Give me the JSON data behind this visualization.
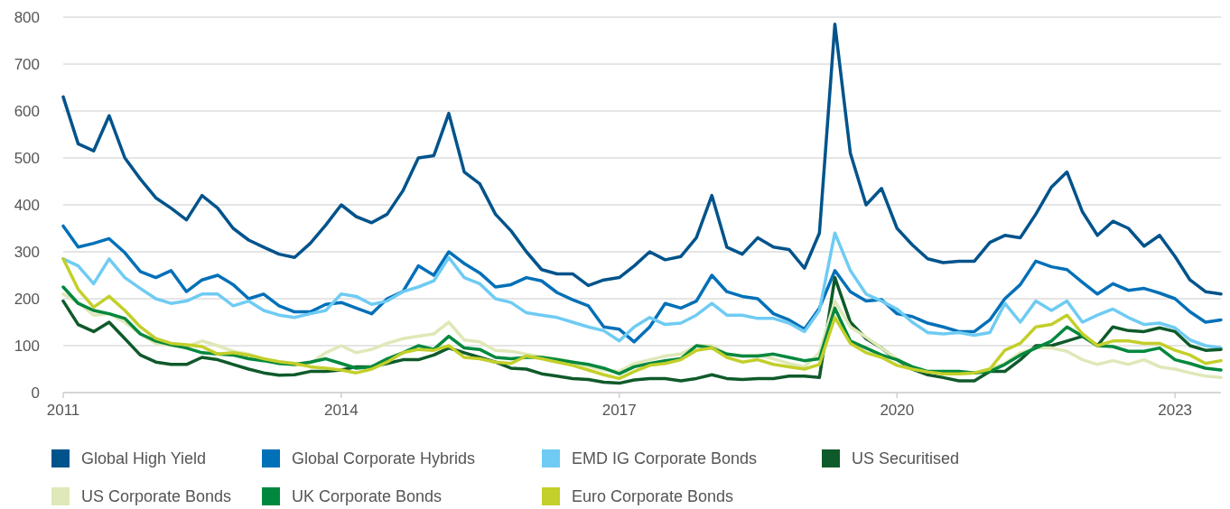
{
  "chart_data": {
    "type": "line",
    "x": [
      "2011-01",
      "2011-03",
      "2011-05",
      "2011-07",
      "2011-09",
      "2011-11",
      "2012-01",
      "2012-03",
      "2012-05",
      "2012-07",
      "2012-09",
      "2012-11",
      "2013-01",
      "2013-03",
      "2013-05",
      "2013-07",
      "2013-09",
      "2013-11",
      "2014-01",
      "2014-03",
      "2014-05",
      "2014-07",
      "2014-09",
      "2014-11",
      "2015-01",
      "2015-03",
      "2015-05",
      "2015-07",
      "2015-09",
      "2015-11",
      "2016-01",
      "2016-03",
      "2016-05",
      "2016-07",
      "2016-09",
      "2016-11",
      "2017-01",
      "2017-03",
      "2017-05",
      "2017-07",
      "2017-09",
      "2017-11",
      "2018-01",
      "2018-03",
      "2018-05",
      "2018-07",
      "2018-09",
      "2018-11",
      "2019-01",
      "2019-03",
      "2019-05",
      "2019-07",
      "2019-09",
      "2019-11",
      "2020-01",
      "2020-03",
      "2020-05",
      "2020-07",
      "2020-09",
      "2020-11",
      "2021-01",
      "2021-03",
      "2021-05",
      "2021-07",
      "2021-09",
      "2021-11",
      "2022-01",
      "2022-03",
      "2022-05",
      "2022-07",
      "2022-09",
      "2022-11",
      "2023-01",
      "2023-03",
      "2023-05",
      "2023-07"
    ],
    "series": [
      {
        "name": "Global High Yield",
        "color": "#00538b",
        "values": [
          630,
          530,
          515,
          590,
          500,
          455,
          415,
          393,
          368,
          420,
          393,
          350,
          325,
          310,
          295,
          288,
          318,
          357,
          400,
          375,
          362,
          380,
          430,
          500,
          505,
          595,
          470,
          445,
          380,
          345,
          300,
          262,
          253,
          253,
          228,
          240,
          245,
          270,
          300,
          283,
          290,
          330,
          420,
          310,
          295,
          330,
          310,
          305,
          265,
          340,
          785,
          510,
          400,
          435,
          350,
          315,
          285,
          277,
          280,
          280,
          320,
          335,
          330,
          380,
          438,
          470,
          385,
          335,
          365,
          350,
          312,
          335,
          290,
          240,
          215,
          210
        ]
      },
      {
        "name": "Global Corporate Hybrids",
        "color": "#0070b8",
        "values": [
          355,
          310,
          318,
          328,
          298,
          258,
          245,
          260,
          215,
          240,
          250,
          230,
          200,
          210,
          185,
          172,
          172,
          188,
          192,
          180,
          168,
          200,
          215,
          270,
          250,
          300,
          275,
          255,
          225,
          230,
          245,
          238,
          213,
          198,
          185,
          140,
          135,
          108,
          140,
          190,
          180,
          195,
          250,
          215,
          205,
          200,
          168,
          155,
          135,
          180,
          260,
          215,
          195,
          198,
          168,
          162,
          148,
          140,
          130,
          130,
          155,
          200,
          230,
          280,
          268,
          262,
          235,
          210,
          232,
          218,
          222,
          212,
          200,
          172,
          150,
          155
        ]
      },
      {
        "name": "EMD IG Corporate Bonds",
        "color": "#6fcbf3",
        "values": [
          285,
          270,
          232,
          285,
          245,
          222,
          200,
          190,
          195,
          210,
          210,
          185,
          195,
          175,
          165,
          160,
          168,
          175,
          210,
          205,
          188,
          195,
          215,
          225,
          238,
          288,
          245,
          232,
          200,
          192,
          170,
          165,
          160,
          150,
          140,
          132,
          110,
          140,
          160,
          145,
          148,
          165,
          190,
          165,
          165,
          158,
          158,
          148,
          130,
          175,
          340,
          260,
          210,
          195,
          178,
          150,
          128,
          125,
          128,
          122,
          128,
          190,
          150,
          195,
          175,
          195,
          150,
          165,
          178,
          160,
          145,
          148,
          138,
          112,
          100,
          95
        ]
      },
      {
        "name": "US Securitised",
        "color": "#0f5a2a",
        "values": [
          195,
          145,
          130,
          150,
          115,
          80,
          65,
          60,
          60,
          75,
          70,
          60,
          50,
          42,
          37,
          38,
          45,
          45,
          48,
          55,
          55,
          62,
          70,
          70,
          80,
          95,
          85,
          75,
          65,
          52,
          50,
          40,
          35,
          30,
          28,
          22,
          20,
          27,
          30,
          30,
          25,
          30,
          38,
          30,
          28,
          30,
          30,
          35,
          35,
          32,
          245,
          150,
          115,
          95,
          70,
          50,
          38,
          32,
          25,
          25,
          45,
          45,
          70,
          100,
          100,
          110,
          120,
          100,
          140,
          132,
          130,
          138,
          130,
          100,
          90,
          92
        ]
      },
      {
        "name": "US Corporate Bonds",
        "color": "#dfe8b8",
        "values": [
          210,
          192,
          165,
          168,
          150,
          125,
          105,
          100,
          98,
          110,
          100,
          88,
          82,
          72,
          62,
          58,
          62,
          85,
          100,
          85,
          92,
          105,
          115,
          120,
          125,
          150,
          112,
          108,
          90,
          88,
          82,
          76,
          72,
          65,
          56,
          48,
          45,
          62,
          70,
          78,
          82,
          100,
          100,
          82,
          78,
          80,
          72,
          62,
          55,
          85,
          195,
          140,
          118,
          95,
          72,
          52,
          44,
          40,
          40,
          42,
          50,
          62,
          85,
          95,
          95,
          88,
          70,
          60,
          68,
          60,
          70,
          55,
          50,
          42,
          35,
          32
        ]
      },
      {
        "name": "UK Corporate Bonds",
        "color": "#00883e",
        "values": [
          225,
          190,
          175,
          168,
          158,
          125,
          110,
          102,
          95,
          85,
          82,
          80,
          72,
          68,
          62,
          60,
          65,
          72,
          62,
          52,
          55,
          72,
          85,
          100,
          92,
          120,
          95,
          92,
          75,
          72,
          75,
          75,
          70,
          65,
          60,
          52,
          40,
          55,
          62,
          68,
          72,
          100,
          95,
          82,
          78,
          78,
          82,
          75,
          68,
          72,
          180,
          110,
          95,
          80,
          70,
          55,
          45,
          45,
          45,
          42,
          45,
          60,
          80,
          95,
          110,
          140,
          120,
          100,
          98,
          88,
          88,
          95,
          70,
          62,
          52,
          48
        ]
      },
      {
        "name": "Euro Corporate Bonds",
        "color": "#c3cf2a",
        "values": [
          285,
          220,
          182,
          205,
          175,
          140,
          115,
          105,
          102,
          98,
          82,
          85,
          80,
          72,
          66,
          62,
          55,
          52,
          48,
          42,
          50,
          65,
          85,
          92,
          90,
          100,
          75,
          72,
          65,
          62,
          78,
          72,
          65,
          58,
          48,
          38,
          30,
          45,
          58,
          62,
          70,
          90,
          95,
          75,
          65,
          70,
          60,
          55,
          50,
          60,
          160,
          105,
          85,
          75,
          58,
          50,
          44,
          40,
          40,
          42,
          50,
          90,
          105,
          140,
          145,
          165,
          125,
          100,
          110,
          110,
          105,
          105,
          90,
          80,
          62,
          68
        ]
      }
    ],
    "xlim": [
      "2011-01",
      "2023-07"
    ],
    "xticks": [
      "2011",
      "2014",
      "2017",
      "2020",
      "2023"
    ],
    "ylim": [
      0,
      800
    ],
    "yticks": [
      0,
      100,
      200,
      300,
      400,
      500,
      600,
      700,
      800
    ],
    "grid": "y",
    "legend": "bottom",
    "line_style": "solid"
  }
}
